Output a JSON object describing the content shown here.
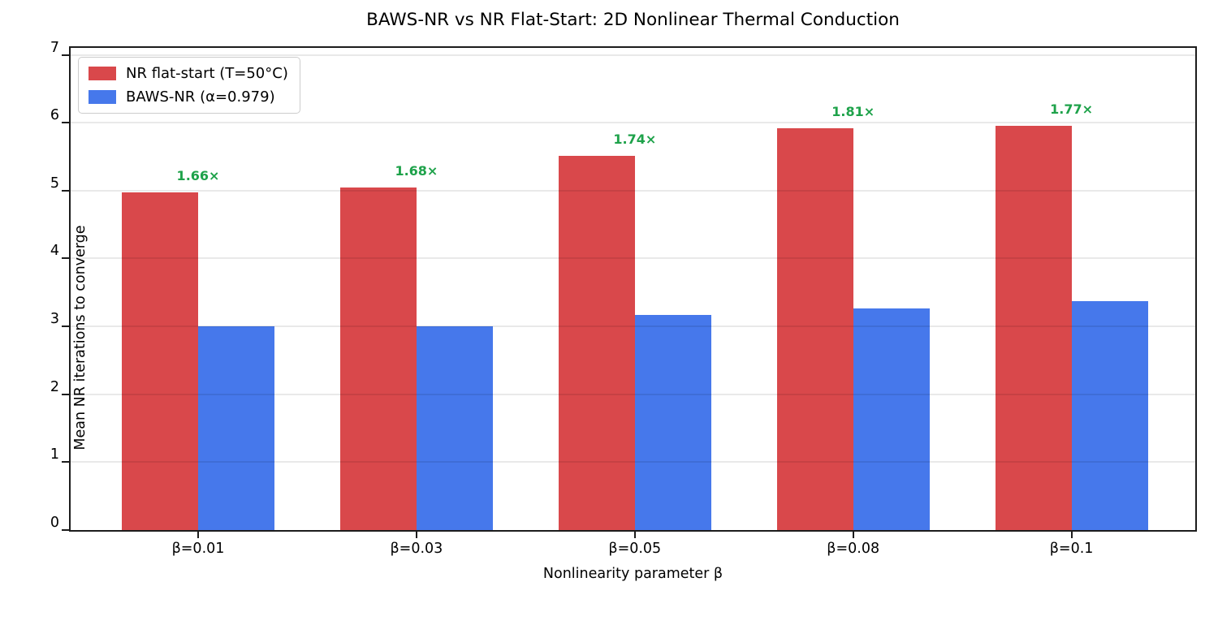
{
  "chart_data": {
    "type": "bar",
    "title": "BAWS-NR vs NR Flat-Start: 2D Nonlinear Thermal Conduction",
    "xlabel": "Nonlinearity parameter β",
    "ylabel": "Mean NR iterations to converge",
    "categories": [
      "β=0.01",
      "β=0.03",
      "β=0.05",
      "β=0.08",
      "β=0.1"
    ],
    "series": [
      {
        "name": "NR flat-start (T=50°C)",
        "color": "#d9484b",
        "values": [
          4.98,
          5.04,
          5.51,
          5.92,
          5.96
        ]
      },
      {
        "name": "BAWS-NR (α=0.979)",
        "color": "#4678eb",
        "values": [
          3.0,
          3.0,
          3.17,
          3.27,
          3.37
        ]
      }
    ],
    "annotations": {
      "labels": [
        "1.66×",
        "1.68×",
        "1.74×",
        "1.81×",
        "1.77×"
      ],
      "color": "#1ea24a"
    },
    "y_ticks": [
      0,
      1,
      2,
      3,
      4,
      5,
      6,
      7
    ],
    "ylim": [
      0,
      7.15
    ],
    "grid": "horizontal",
    "legend_position": "upper-left",
    "colors": {
      "spine": "#1c1c1c",
      "grid": "rgba(0,0,0,0.085)",
      "background": "#ffffff"
    }
  }
}
